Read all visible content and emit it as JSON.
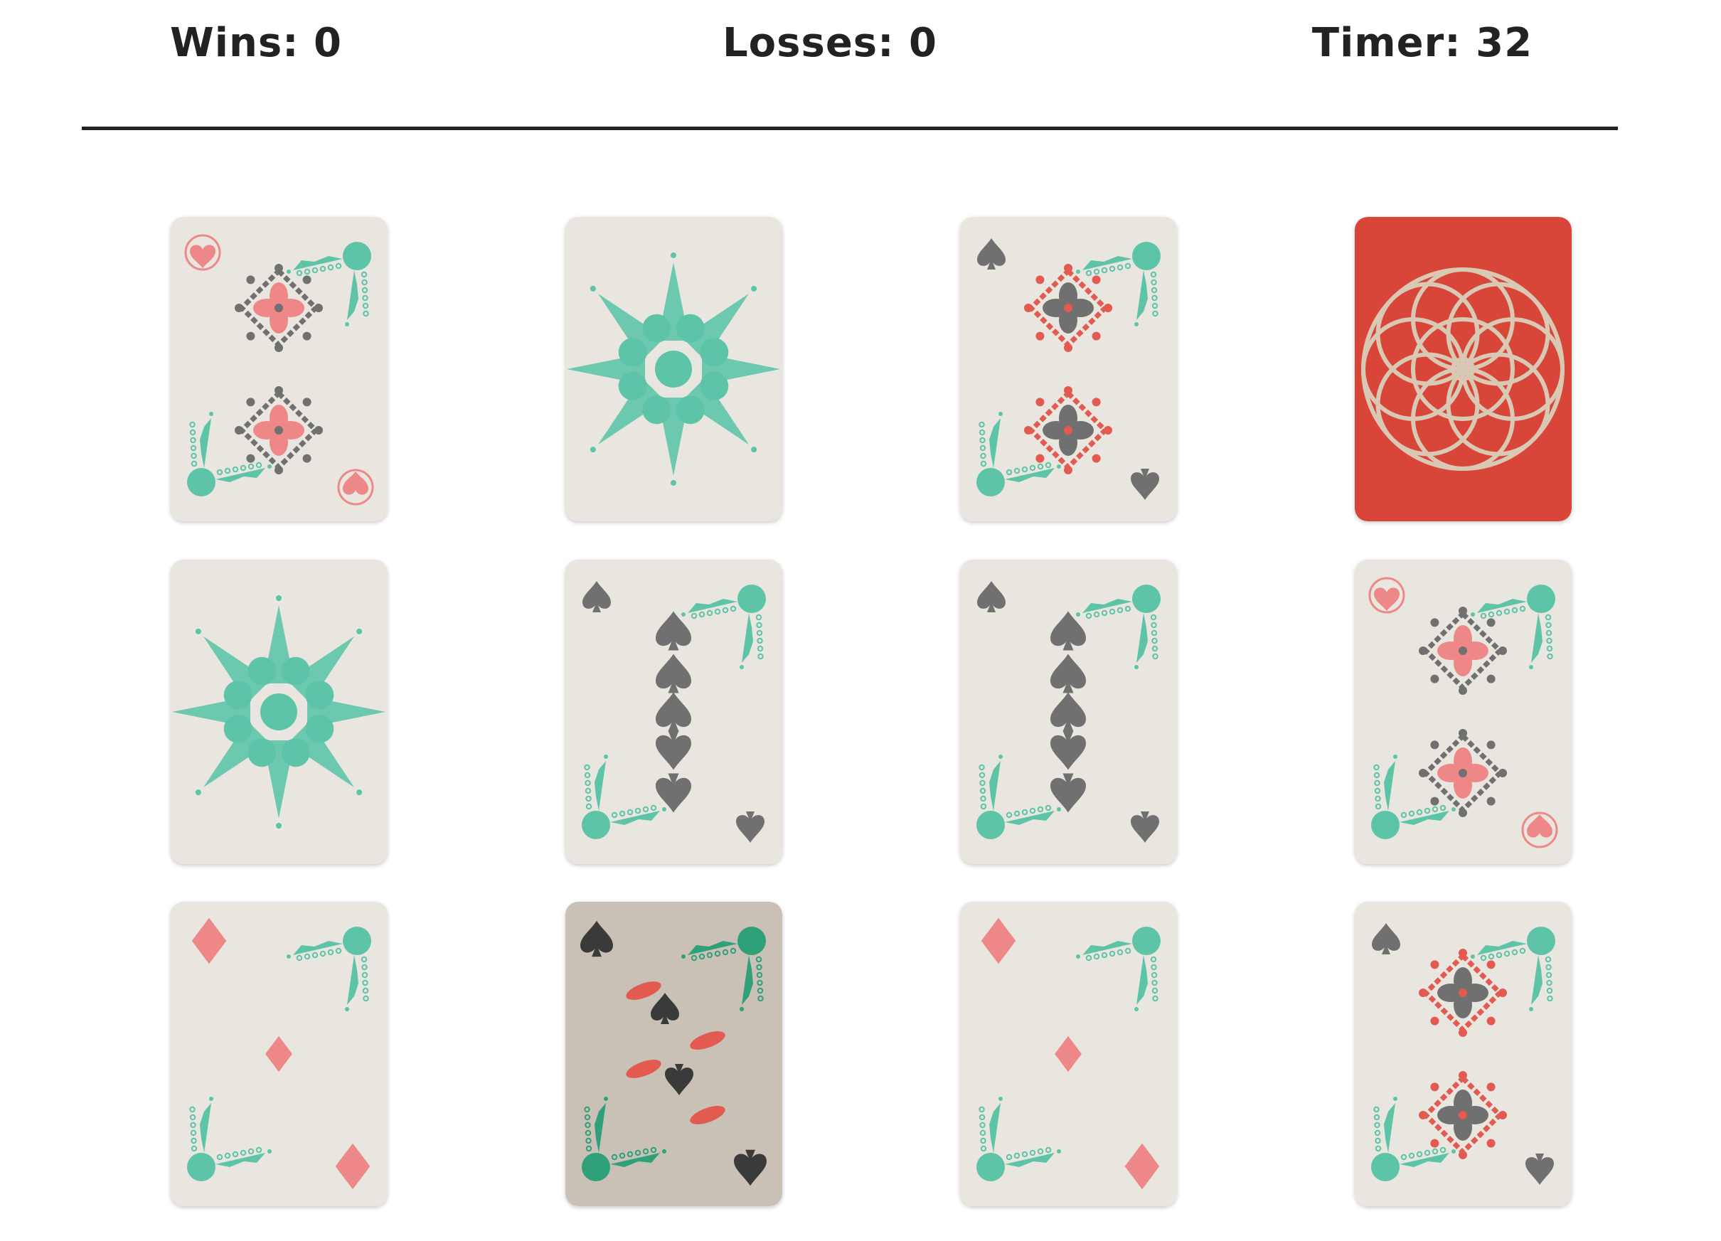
{
  "scoreboard": {
    "wins": "Wins: 0",
    "losses": "Losses: 0",
    "timer": "Timer: 32"
  },
  "colors": {
    "card_face": "#e9e5df",
    "card_face_worn": "#c9c1b5",
    "card_back": "#d8463a",
    "back_lines": "#d9c8b4",
    "teal": "#5ec4a8",
    "teal_dark": "#2fa07a",
    "pink": "#ee8888",
    "red_ornament": "#e25a50",
    "gray_suit": "#707070",
    "black_suit": "#3a3a3a"
  },
  "cards": [
    {
      "state": "face-up",
      "design": "hearts-two"
    },
    {
      "state": "face-up",
      "design": "eight-point-star"
    },
    {
      "state": "face-up",
      "design": "spades-two"
    },
    {
      "state": "face-down",
      "design": "rosette-back"
    },
    {
      "state": "face-up",
      "design": "eight-point-star"
    },
    {
      "state": "face-up",
      "design": "spades-column"
    },
    {
      "state": "face-up",
      "design": "spades-column"
    },
    {
      "state": "face-up",
      "design": "hearts-two"
    },
    {
      "state": "face-up",
      "design": "diamond-ace"
    },
    {
      "state": "face-up",
      "design": "spades-ornate"
    },
    {
      "state": "face-up",
      "design": "diamond-ace"
    },
    {
      "state": "face-up",
      "design": "spades-two"
    }
  ]
}
